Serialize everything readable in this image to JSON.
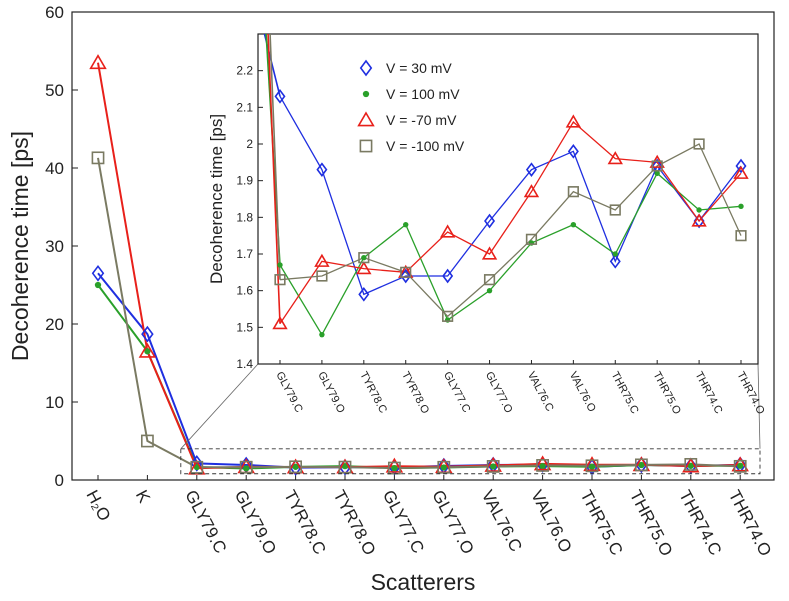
{
  "chart_data": [
    {
      "type": "line",
      "xlabel": "Scatterers",
      "ylabel": "Decoherence time [ps]",
      "ylim": [
        0,
        60
      ],
      "yticks": [
        0,
        10,
        20,
        30,
        40,
        50,
        60
      ],
      "grid": false,
      "categories": [
        "H₂O",
        "K",
        "GLY79.C",
        "GLY79.O",
        "TYR78.C",
        "TYR78.O",
        "GLY77.C",
        "GLY77.O",
        "VAL76.C",
        "VAL76.O",
        "THR75.C",
        "THR75.O",
        "THR74.C",
        "THR74.O"
      ],
      "series": [
        {
          "name": "V = 30 mV",
          "color": "#1f2fe0",
          "marker": "diamond",
          "values": [
            26.5,
            18.7,
            2.13,
            1.93,
            1.59,
            1.64,
            1.64,
            1.79,
            1.93,
            1.98,
            1.68,
            1.94,
            1.79,
            1.94
          ]
        },
        {
          "name": "V = 100 mV",
          "color": "#2aa02a",
          "marker": "dot",
          "values": [
            25.0,
            16.5,
            1.67,
            1.48,
            1.69,
            1.78,
            1.52,
            1.6,
            1.73,
            1.78,
            1.7,
            1.92,
            1.82,
            1.83
          ]
        },
        {
          "name": "V = -70 mV",
          "color": "#e8201a",
          "marker": "triangle",
          "values": [
            53.5,
            16.5,
            1.51,
            1.68,
            1.66,
            1.65,
            1.76,
            1.7,
            1.87,
            2.06,
            1.96,
            1.95,
            1.79,
            1.92
          ]
        },
        {
          "name": "V = -100 mV",
          "color": "#7a7a62",
          "marker": "square",
          "values": [
            41.3,
            5.0,
            1.63,
            1.64,
            1.69,
            1.65,
            1.53,
            1.63,
            1.74,
            1.87,
            1.82,
            1.94,
            2.0,
            1.75
          ]
        }
      ]
    },
    {
      "type": "line",
      "xlabel": "",
      "ylabel": "Decoherence time [ps]",
      "ylim": [
        1.4,
        2.3
      ],
      "yticks": [
        1.4,
        1.5,
        1.6,
        1.7,
        1.8,
        1.9,
        2.0,
        2.1,
        2.2
      ],
      "ytick_labels": [
        "1.4",
        "1.5",
        "1.6",
        "1.7",
        "1.8",
        "1.9",
        "2",
        "2.1",
        "2.2"
      ],
      "legend_position": "top-left",
      "categories": [
        "GLY79.C",
        "GLY79.O",
        "TYR78.C",
        "TYR78.O",
        "GLY77.C",
        "GLY77.O",
        "VAL76.C",
        "VAL76.O",
        "THR75.C",
        "THR75.O",
        "THR74.C",
        "THR74.O"
      ],
      "series": [
        {
          "name": "V = 30 mV",
          "color": "#1f2fe0",
          "marker": "diamond",
          "values": [
            2.13,
            1.93,
            1.59,
            1.64,
            1.64,
            1.79,
            1.93,
            1.98,
            1.68,
            1.94,
            1.79,
            1.94
          ]
        },
        {
          "name": "V = 100 mV",
          "color": "#2aa02a",
          "marker": "dot",
          "values": [
            1.67,
            1.48,
            1.69,
            1.78,
            1.52,
            1.6,
            1.73,
            1.78,
            1.7,
            1.92,
            1.82,
            1.83
          ]
        },
        {
          "name": "V = -70 mV",
          "color": "#e8201a",
          "marker": "triangle",
          "values": [
            1.51,
            1.68,
            1.66,
            1.65,
            1.76,
            1.7,
            1.87,
            2.06,
            1.96,
            1.95,
            1.79,
            1.92
          ]
        },
        {
          "name": "V = -100 mV",
          "color": "#7a7a62",
          "marker": "square",
          "values": [
            1.63,
            1.64,
            1.69,
            1.65,
            1.53,
            1.63,
            1.74,
            1.87,
            1.82,
            1.94,
            2.0,
            1.75
          ]
        }
      ]
    }
  ]
}
